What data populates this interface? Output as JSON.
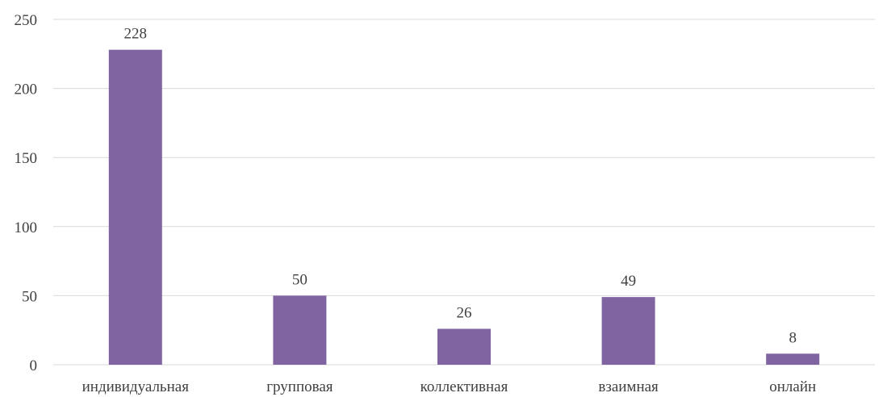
{
  "chart_data": {
    "type": "bar",
    "categories": [
      "индивидуальная",
      "групповая",
      "коллективная",
      "взаимная",
      "онлайн"
    ],
    "values": [
      228,
      50,
      26,
      49,
      8
    ],
    "data_labels": [
      "228",
      "50",
      "26",
      "49",
      "8"
    ],
    "yticks": [
      "0",
      "50",
      "100",
      "150",
      "200",
      "250"
    ],
    "ylim": [
      0,
      250
    ],
    "grid": true,
    "legend": "none",
    "colors": {
      "bar": "#8064a2"
    }
  }
}
